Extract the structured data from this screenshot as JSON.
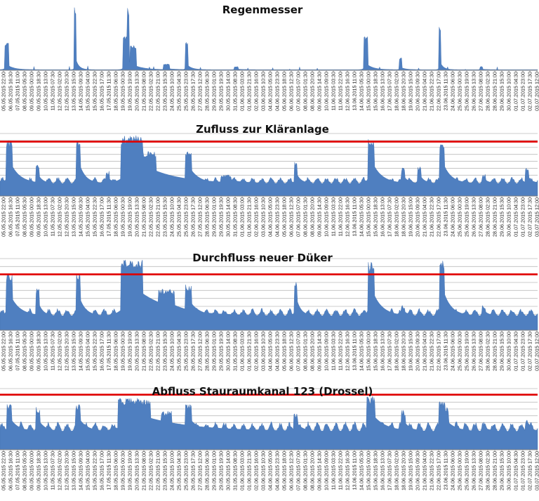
{
  "colors": {
    "area": "#4f7fc0",
    "limit": "#e00000",
    "grid": "#bdbdbd"
  },
  "chart_data": [
    {
      "type": "area",
      "title": "Regenmesser",
      "grid": false,
      "limit_line": null,
      "x_ticks": [
        "05.05.2015 22:00",
        "06.05.2015 16:30",
        "07.05.2015 11:00",
        "08.05.2015 05:30",
        "09.05.2015 00:00",
        "09.05.2015 18:30",
        "10.05.2015 13:00",
        "11.05.2015 07:30",
        "12.05.2015 02:00",
        "12.05.2015 20:30",
        "13.05.2015 15:00",
        "14.05.2015 09:30",
        "15.05.2015 04:00",
        "15.05.2015 22:30",
        "16.05.2015 17:00",
        "17.05.2015 11:30",
        "18.05.2015 06:00",
        "19.05.2015 00:30",
        "19.05.2015 19:00",
        "20.05.2015 13:30",
        "21.05.2015 08:00",
        "22.05.2015 02:30",
        "22.05.2015 21:00",
        "23.05.2015 15:30",
        "24.05.2015 10:00",
        "25.05.2015 04:30",
        "25.05.2015 23:00",
        "26.05.2015 17:30",
        "27.05.2015 12:00",
        "28.05.2015 06:30",
        "29.05.2015 01:00",
        "29.05.2015 19:30",
        "30.05.2015 14:00",
        "31.05.2015 08:30",
        "01.06.2015 03:00",
        "01.06.2015 21:30",
        "02.06.2015 16:00",
        "03.06.2015 10:30",
        "04.06.2015 05:00",
        "04.06.2015 23:30",
        "05.06.2015 18:00",
        "06.06.2015 12:30",
        "07.06.2015 07:00",
        "08.06.2015 01:30",
        "08.06.2015 20:00",
        "09.06.2015 14:30",
        "10.06.2015 09:00",
        "11.06.2015 03:30",
        "11.06.2015 22:00",
        "12.06.2015 16:30",
        "13.06.2015 11:00",
        "14.06.2015 05:30",
        "15.06.2015 00:00",
        "15.06.2015 18:30",
        "16.06.2015 13:00",
        "17.06.2015 07:30",
        "18.06.2015 02:00",
        "18.06.2015 20:30",
        "19.06.2015 15:00",
        "20.06.2015 09:30",
        "21.06.2015 04:00",
        "21.06.2015 22:30",
        "22.06.2015 17:00",
        "23.06.2015 11:30",
        "24.06.2015 06:00",
        "25.06.2015 00:30",
        "25.06.2015 19:00",
        "26.06.2015 13:30",
        "27.06.2015 08:00",
        "28.06.2015 02:30",
        "28.06.2015 21:00",
        "29.06.2015 15:30",
        "30.06.2015 10:00",
        "01.07.2015 04:30",
        "01.07.2015 23:00",
        "02.07.2015 17:30",
        "03.07.2015 12:00"
      ],
      "peaks": [
        {
          "x": 0.012,
          "y": 0.45,
          "w": 0.004
        },
        {
          "x": 0.14,
          "y": 1.0,
          "w": 0.002
        },
        {
          "x": 0.232,
          "y": 0.55,
          "w": 0.004
        },
        {
          "x": 0.238,
          "y": 1.0,
          "w": 0.002
        },
        {
          "x": 0.248,
          "y": 0.4,
          "w": 0.006
        },
        {
          "x": 0.31,
          "y": 0.1,
          "w": 0.006
        },
        {
          "x": 0.347,
          "y": 0.45,
          "w": 0.003
        },
        {
          "x": 0.44,
          "y": 0.06,
          "w": 0.004
        },
        {
          "x": 0.68,
          "y": 0.55,
          "w": 0.004
        },
        {
          "x": 0.745,
          "y": 0.2,
          "w": 0.003
        },
        {
          "x": 0.818,
          "y": 0.7,
          "w": 0.002
        },
        {
          "x": 0.895,
          "y": 0.06,
          "w": 0.003
        }
      ],
      "baseline": 0.01
    },
    {
      "type": "area",
      "title": "Zufluss zur Kläranlage",
      "grid": true,
      "limit_line": 0.87,
      "x_ticks": [
        "05.05.2015 22:00",
        "06.05.2015 16:30",
        "07.05.2015 11:00",
        "08.05.2015 05:30",
        "09.05.2015 00:00",
        "09.05.2015 18:30",
        "10.05.2015 13:00",
        "11.05.2015 07:30",
        "12.05.2015 02:00",
        "12.05.2015 20:30",
        "13.05.2015 15:00",
        "14.05.2015 09:30",
        "15.05.2015 04:00",
        "15.05.2015 22:30",
        "16.05.2015 17:00",
        "17.05.2015 11:30",
        "18.05.2015 06:00",
        "19.05.2015 00:30",
        "19.05.2015 19:00",
        "20.05.2015 13:30",
        "21.05.2015 08:00",
        "22.05.2015 02:30",
        "22.05.2015 21:00",
        "23.05.2015 15:30",
        "24.05.2015 10:00",
        "25.05.2015 04:30",
        "25.05.2015 23:00",
        "26.05.2015 17:30",
        "27.05.2015 12:00",
        "28.05.2015 06:30",
        "29.05.2015 01:00",
        "29.05.2015 19:30",
        "30.05.2015 14:00",
        "31.05.2015 08:30",
        "01.06.2015 03:00",
        "01.06.2015 21:30",
        "02.06.2015 16:00",
        "03.06.2015 10:30",
        "04.06.2015 05:00",
        "04.06.2015 23:30",
        "05.06.2015 18:00",
        "06.06.2015 12:30",
        "07.06.2015 07:00",
        "08.06.2015 01:30",
        "08.06.2015 20:00",
        "09.06.2015 14:30",
        "10.06.2015 09:00",
        "11.06.2015 03:30",
        "11.06.2015 22:00",
        "12.06.2015 16:30",
        "13.06.2015 11:00",
        "14.06.2015 05:30",
        "15.06.2015 00:00",
        "15.06.2015 18:30",
        "16.06.2015 13:00",
        "17.06.2015 07:30",
        "18.06.2015 02:00",
        "18.06.2015 20:30",
        "19.06.2015 15:00",
        "20.06.2015 09:30",
        "21.06.2015 04:00",
        "21.06.2015 22:30",
        "22.06.2015 17:00",
        "23.06.2015 11:30",
        "24.06.2015 06:00",
        "25.06.2015 00:30",
        "25.06.2015 19:00",
        "26.06.2015 13:30",
        "27.06.2015 08:00",
        "28.06.2015 02:30",
        "28.06.2015 21:00",
        "29.06.2015 15:30",
        "30.06.2015 10:00",
        "01.07.2015 04:30",
        "01.07.2015 23:00",
        "02.07.2015 17:30",
        "03.07.2015 12:00"
      ],
      "peaks": [
        {
          "x": 0.017,
          "y": 0.9,
          "w": 0.006
        },
        {
          "x": 0.07,
          "y": 0.5,
          "w": 0.003
        },
        {
          "x": 0.145,
          "y": 0.92,
          "w": 0.004
        },
        {
          "x": 0.2,
          "y": 0.4,
          "w": 0.003
        },
        {
          "x": 0.245,
          "y": 0.97,
          "w": 0.02
        },
        {
          "x": 0.27,
          "y": 0.72,
          "w": 0.02
        },
        {
          "x": 0.35,
          "y": 0.75,
          "w": 0.006
        },
        {
          "x": 0.42,
          "y": 0.34,
          "w": 0.01
        },
        {
          "x": 0.55,
          "y": 0.55,
          "w": 0.003
        },
        {
          "x": 0.69,
          "y": 0.92,
          "w": 0.006
        },
        {
          "x": 0.75,
          "y": 0.45,
          "w": 0.003
        },
        {
          "x": 0.78,
          "y": 0.48,
          "w": 0.003
        },
        {
          "x": 0.822,
          "y": 0.9,
          "w": 0.005
        },
        {
          "x": 0.9,
          "y": 0.35,
          "w": 0.003
        },
        {
          "x": 0.98,
          "y": 0.45,
          "w": 0.003
        }
      ],
      "baseline": 0.2
    },
    {
      "type": "area",
      "title": "Durchfluss neuer Düker",
      "grid": true,
      "limit_line": 0.78,
      "x_ticks": [
        "05.05.2015 22:00",
        "06.05.2015 16:30",
        "07.05.2015 11:00",
        "08.05.2015 05:30",
        "09.05.2015 00:00",
        "09.05.2015 18:30",
        "10.05.2015 13:00",
        "11.05.2015 07:30",
        "12.05.2015 02:00",
        "12.05.2015 20:30",
        "13.05.2015 15:00",
        "14.05.2015 09:30",
        "15.05.2015 04:00",
        "15.05.2015 22:30",
        "16.05.2015 17:00",
        "17.05.2015 11:30",
        "18.05.2015 06:00",
        "19.05.2015 00:30",
        "19.05.2015 19:00",
        "20.05.2015 13:30",
        "21.05.2015 08:00",
        "22.05.2015 02:30",
        "22.05.2015 21:00",
        "23.05.2015 15:30",
        "24.05.2015 10:00",
        "25.05.2015 04:30",
        "25.05.2015 23:00",
        "26.05.2015 17:30",
        "27.05.2015 12:00",
        "28.05.2015 06:30",
        "29.05.2015 01:00",
        "29.05.2015 19:30",
        "30.05.2015 14:00",
        "31.05.2015 08:30",
        "01.06.2015 03:00",
        "01.06.2015 21:30",
        "02.06.2015 16:00",
        "03.06.2015 10:30",
        "04.06.2015 05:00",
        "04.06.2015 23:30",
        "05.06.2015 18:00",
        "06.06.2015 12:30",
        "07.06.2015 07:00",
        "08.06.2015 01:30",
        "08.06.2015 20:00",
        "09.06.2015 14:30",
        "10.06.2015 09:00",
        "11.06.2015 03:30",
        "11.06.2015 22:00",
        "12.06.2015 16:30",
        "13.06.2015 11:00",
        "14.06.2015 05:30",
        "15.06.2015 00:00",
        "15.06.2015 18:30",
        "16.06.2015 13:00",
        "17.06.2015 07:30",
        "18.06.2015 02:00",
        "18.06.2015 20:30",
        "19.06.2015 15:00",
        "20.06.2015 09:30",
        "21.06.2015 04:00",
        "21.06.2015 22:30",
        "22.06.2015 17:00",
        "23.06.2015 11:30",
        "24.06.2015 06:00",
        "25.06.2015 00:30",
        "25.06.2015 19:00",
        "26.06.2015 13:30",
        "27.06.2015 08:00",
        "28.06.2015 02:30",
        "28.06.2015 21:00",
        "29.06.2015 15:30",
        "30.06.2015 10:00",
        "01.07.2015 04:30",
        "01.07.2015 23:00",
        "02.07.2015 17:30",
        "03.07.2015 12:00"
      ],
      "peaks": [
        {
          "x": 0.017,
          "y": 0.8,
          "w": 0.006
        },
        {
          "x": 0.07,
          "y": 0.6,
          "w": 0.003
        },
        {
          "x": 0.145,
          "y": 0.8,
          "w": 0.004
        },
        {
          "x": 0.245,
          "y": 1.0,
          "w": 0.02
        },
        {
          "x": 0.31,
          "y": 0.58,
          "w": 0.015
        },
        {
          "x": 0.35,
          "y": 0.65,
          "w": 0.006
        },
        {
          "x": 0.55,
          "y": 0.72,
          "w": 0.003
        },
        {
          "x": 0.69,
          "y": 0.95,
          "w": 0.006
        },
        {
          "x": 0.75,
          "y": 0.35,
          "w": 0.003
        },
        {
          "x": 0.822,
          "y": 0.97,
          "w": 0.005
        },
        {
          "x": 0.9,
          "y": 0.35,
          "w": 0.003
        }
      ],
      "baseline": 0.2
    },
    {
      "type": "area",
      "title": "Abfluss Stauraumkanal 123 (Drossel)",
      "grid": true,
      "limit_line": 0.9,
      "x_ticks": [
        "05.05.2015 22:00",
        "06.05.2015 16:30",
        "07.05.2015 11:00",
        "08.05.2015 05:30",
        "09.05.2015 00:00",
        "09.05.2015 18:30",
        "10.05.2015 13:00",
        "11.05.2015 07:30",
        "12.05.2015 02:00",
        "12.05.2015 20:30",
        "13.05.2015 15:00",
        "14.05.2015 09:30",
        "15.05.2015 04:00",
        "15.05.2015 22:30",
        "16.05.2015 17:00",
        "17.05.2015 11:30",
        "18.05.2015 06:00",
        "19.05.2015 00:30",
        "19.05.2015 19:00",
        "20.05.2015 13:30",
        "21.05.2015 08:00",
        "22.05.2015 02:30",
        "22.05.2015 21:00",
        "23.05.2015 15:30",
        "24.05.2015 10:00",
        "25.05.2015 04:30",
        "25.05.2015 23:00",
        "26.05.2015 17:30",
        "27.05.2015 12:00",
        "28.05.2015 06:30",
        "29.05.2015 01:00",
        "29.05.2015 19:30",
        "30.05.2015 14:00",
        "31.05.2015 08:30",
        "01.06.2015 03:00",
        "01.06.2015 21:30",
        "02.06.2015 16:00",
        "03.06.2015 10:30",
        "04.06.2015 05:00",
        "04.06.2015 23:30",
        "05.06.2015 18:00",
        "06.06.2015 12:30",
        "07.06.2015 07:00",
        "08.06.2015 01:30",
        "08.06.2015 20:00",
        "09.06.2015 14:30",
        "10.06.2015 09:00",
        "11.06.2015 03:30",
        "11.06.2015 22:00",
        "12.06.2015 16:30",
        "13.06.2015 11:00",
        "14.06.2015 05:30",
        "15.06.2015 00:00",
        "15.06.2015 18:30",
        "16.06.2015 13:00",
        "17.06.2015 07:30",
        "18.06.2015 02:00",
        "18.06.2015 20:30",
        "19.06.2015 15:00",
        "20.06.2015 09:30",
        "21.06.2015 04:00",
        "21.06.2015 22:30",
        "22.06.2015 17:00",
        "23.06.2015 11:30",
        "24.06.2015 06:00",
        "25.06.2015 00:30",
        "25.06.2015 19:00",
        "26.06.2015 13:30",
        "27.06.2015 08:00",
        "28.06.2015 02:30",
        "28.06.2015 21:00",
        "29.06.2015 15:30",
        "30.06.2015 10:00",
        "01.07.2015 04:30",
        "01.07.2015 23:00",
        "02.07.2015 17:30",
        "03.07.2015 12:00"
      ],
      "peaks": [
        {
          "x": 0.017,
          "y": 0.75,
          "w": 0.005
        },
        {
          "x": 0.07,
          "y": 0.7,
          "w": 0.004
        },
        {
          "x": 0.145,
          "y": 0.75,
          "w": 0.005
        },
        {
          "x": 0.25,
          "y": 0.85,
          "w": 0.03
        },
        {
          "x": 0.31,
          "y": 0.65,
          "w": 0.01
        },
        {
          "x": 0.35,
          "y": 0.75,
          "w": 0.006
        },
        {
          "x": 0.55,
          "y": 0.6,
          "w": 0.004
        },
        {
          "x": 0.69,
          "y": 0.88,
          "w": 0.008
        },
        {
          "x": 0.75,
          "y": 0.65,
          "w": 0.004
        },
        {
          "x": 0.822,
          "y": 0.82,
          "w": 0.006
        },
        {
          "x": 0.83,
          "y": 0.7,
          "w": 0.004
        },
        {
          "x": 0.9,
          "y": 0.45,
          "w": 0.003
        },
        {
          "x": 0.98,
          "y": 0.5,
          "w": 0.003
        }
      ],
      "baseline": 0.3
    }
  ]
}
